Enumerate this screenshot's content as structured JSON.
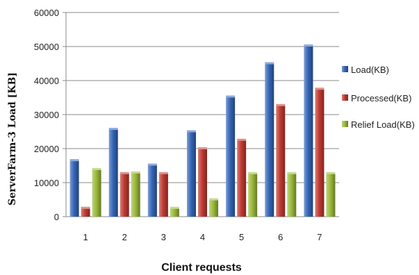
{
  "chart_data": {
    "type": "bar",
    "categories": [
      "1",
      "2",
      "3",
      "4",
      "5",
      "6",
      "7"
    ],
    "series": [
      {
        "name": "Load(KB)",
        "color": "#3566b8",
        "values": [
          16500,
          25700,
          15200,
          25000,
          35200,
          45000,
          50200
        ]
      },
      {
        "name": "Processed(KB)",
        "color": "#c23a32",
        "values": [
          2500,
          12700,
          12700,
          20000,
          22500,
          32700,
          37500
        ]
      },
      {
        "name": "Relief Load(KB)",
        "color": "#9bbb3b",
        "values": [
          13900,
          12900,
          2500,
          5000,
          12700,
          12700,
          12700
        ]
      }
    ],
    "xlabel": "Client requests",
    "ylabel": "ServerFarm-3 Load [KB]",
    "ylim": [
      0,
      60000
    ],
    "yticks": [
      "0",
      "10000",
      "20000",
      "30000",
      "40000",
      "50000",
      "60000"
    ],
    "grid": true,
    "legend": "right"
  }
}
